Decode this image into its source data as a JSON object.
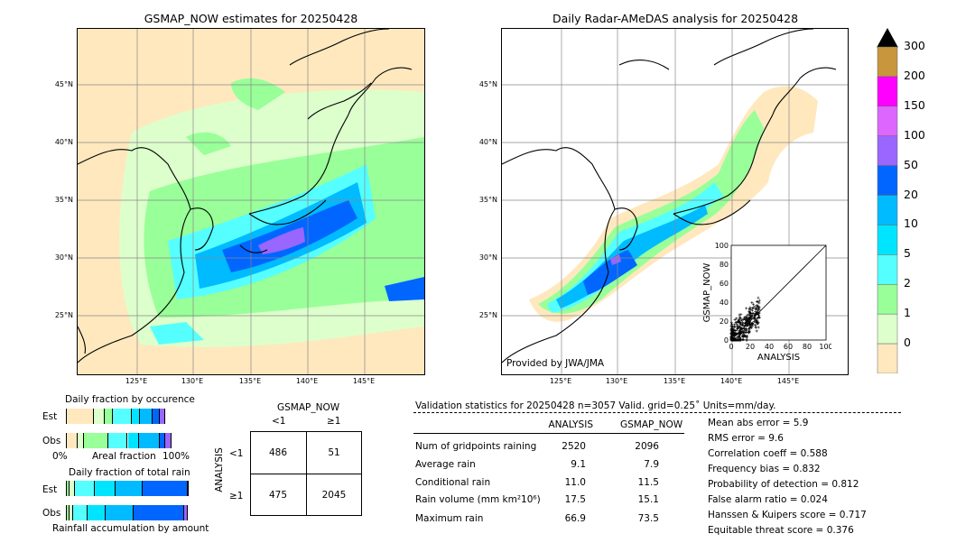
{
  "left_map": {
    "title": "GSMAP_NOW estimates for 20250428",
    "lat_labels": [
      "45°N",
      "40°N",
      "35°N",
      "30°N",
      "25°N"
    ],
    "lon_labels": [
      "125°E",
      "130°E",
      "135°E",
      "140°E",
      "145°E"
    ]
  },
  "right_map": {
    "title": "Daily Radar-AMeDAS analysis for 20250428",
    "lat_labels": [
      "45°N",
      "40°N",
      "35°N",
      "30°N",
      "25°N"
    ],
    "lon_labels": [
      "125°E",
      "130°E",
      "135°E",
      "140°E",
      "145°E"
    ],
    "credit": "Provided by JWA/JMA"
  },
  "colorbar": {
    "labels": [
      "300",
      "200",
      "150",
      "100",
      "50",
      "20",
      "10",
      "5",
      "2",
      "1",
      "0"
    ],
    "colors": [
      "#c8963c",
      "#ff00ff",
      "#dd66ff",
      "#9966ff",
      "#0066ff",
      "#00bbff",
      "#00e5ff",
      "#55ffff",
      "#99ff99",
      "#ddffcc",
      "#ffe8be"
    ],
    "arrow_color": "#000000"
  },
  "chart_data": [
    {
      "type": "scatter",
      "xlabel": "ANALYSIS",
      "ylabel": "GSMAP_NOW",
      "xlim": [
        0,
        100
      ],
      "ylim": [
        0,
        100
      ],
      "x_ticks": [
        "0",
        "20",
        "40",
        "60",
        "80",
        "100"
      ],
      "y_ticks": [
        "0",
        "20",
        "40",
        "60",
        "80",
        "100"
      ],
      "diagonal": true
    },
    {
      "type": "bar",
      "title": "Daily fraction by occurence",
      "row_labels": [
        "Est",
        "Obs"
      ],
      "axis_labels": [
        "0%",
        "Areal fraction",
        "100%"
      ],
      "rows": [
        {
          "segments": [
            0.22,
            0.09,
            0.07,
            0.15,
            0.07,
            0.1,
            0.06,
            0.05
          ]
        },
        {
          "segments": [
            0.09,
            0.05,
            0.2,
            0.16,
            0.09,
            0.17,
            0.05,
            0.05
          ]
        }
      ],
      "colors": [
        "#ffe8be",
        "#ddffcc",
        "#99ff99",
        "#55ffff",
        "#00e5ff",
        "#00bbff",
        "#0066ff",
        "#9966ff"
      ]
    },
    {
      "type": "bar",
      "title": "Daily fraction of total rain",
      "footer": "Rainfall accumulation by amount",
      "row_labels": [
        "Est",
        "Obs"
      ],
      "rows": [
        {
          "segments": [
            0.02,
            0.05,
            0.16,
            0.17,
            0.22,
            0.37,
            0.01
          ]
        },
        {
          "segments": [
            0.02,
            0.03,
            0.12,
            0.15,
            0.23,
            0.41,
            0.03
          ]
        }
      ],
      "colors": [
        "#99ff99",
        "#ddffcc",
        "#55ffff",
        "#00e5ff",
        "#00bbff",
        "#0066ff",
        "#9966ff"
      ]
    },
    {
      "type": "table",
      "title": "GSMAP_NOW",
      "col_labels": [
        "<1",
        "≥1"
      ],
      "row_axis": "ANALYSIS",
      "row_labels": [
        "<1",
        "≥1"
      ],
      "cells": [
        [
          "486",
          "51"
        ],
        [
          "475",
          "2045"
        ]
      ]
    }
  ],
  "validation": {
    "header": "Validation statistics for 20250428  n=3057 Valid. grid=0.25˚ Units=mm/day.",
    "col_analysis": "ANALYSIS",
    "col_gsmap": "GSMAP_NOW",
    "rows": [
      {
        "label": "Num of gridpoints raining",
        "analysis": "2520",
        "gsmap": "2096"
      },
      {
        "label": "Average rain",
        "analysis": "9.1",
        "gsmap": "7.9"
      },
      {
        "label": "Conditional rain",
        "analysis": "11.0",
        "gsmap": "11.5"
      },
      {
        "label": "Rain volume (mm km²10⁶)",
        "analysis": "17.5",
        "gsmap": "15.1"
      },
      {
        "label": "Maximum rain",
        "analysis": "66.9",
        "gsmap": "73.5"
      }
    ],
    "scores": [
      "Mean abs error =    5.9",
      "RMS error =    9.6",
      "Correlation coeff =  0.588",
      "Frequency bias =  0.832",
      "Probability of detection =  0.812",
      "False alarm ratio =  0.024",
      "Hanssen & Kuipers score =  0.717",
      "Equitable threat score =  0.376"
    ]
  }
}
